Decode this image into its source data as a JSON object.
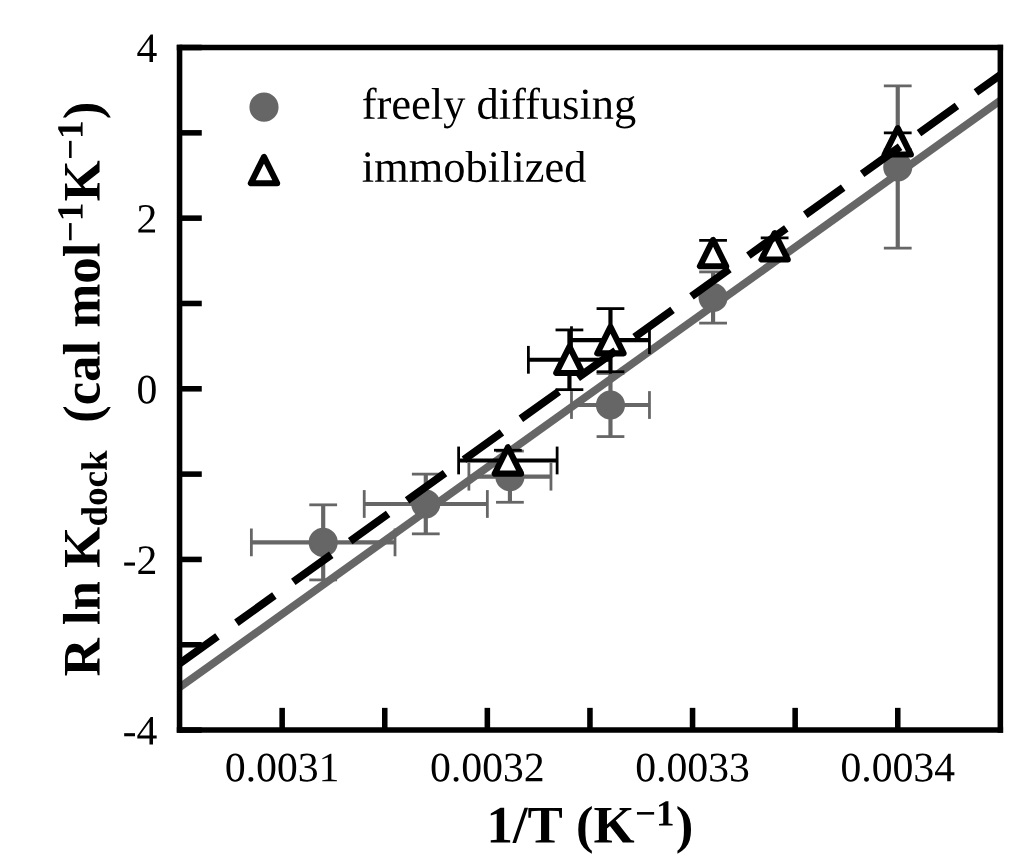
{
  "chart_data": {
    "type": "scatter",
    "xlabel": "1/T (K$^{−1}$)",
    "ylabel": "R ln K$_{dock}$  (cal mol$^{−1}$K$^{−1}$)",
    "xlim": [
      0.00305,
      0.00345
    ],
    "ylim": [
      -4,
      4
    ],
    "xticks": [
      0.0031,
      {
        "value": 0.00315,
        "label": null
      },
      0.0032,
      {
        "value": 0.00325,
        "label": null
      },
      0.0033,
      {
        "value": 0.00335,
        "label": null
      },
      0.0034
    ],
    "yticks": [
      -4,
      {
        "value": -3,
        "label": null
      },
      -2,
      {
        "value": -1,
        "label": null
      },
      0,
      {
        "value": 1,
        "label": null
      },
      2,
      {
        "value": 3,
        "label": null
      },
      4
    ],
    "grid": false,
    "legend": "top left",
    "series": [
      {
        "name": "freely diffusing",
        "marker": "circle",
        "color": "#666666",
        "x": [
          0.00312,
          0.00317,
          0.003211,
          0.00326,
          0.00331,
          0.0034
        ],
        "values": [
          -1.8,
          -1.35,
          -1.03,
          -0.19,
          1.07,
          2.6
        ],
        "errors": [
          0.44,
          0.35,
          0.3,
          0.37,
          0.3,
          0.95
        ],
        "xerrors": [
          3.5e-05,
          3e-05,
          2e-05,
          1.9e-05,
          null,
          null
        ]
      },
      {
        "name": "immobilized",
        "marker": "triangle",
        "color": "#000000",
        "x": [
          0.00321,
          0.00324,
          0.00326,
          0.00331,
          0.00334,
          0.0034
        ],
        "values": [
          -0.84,
          0.34,
          0.57,
          1.59,
          1.67,
          2.9
        ],
        "errors": [
          0.12,
          0.35,
          0.37,
          0.15,
          0.1,
          0.1
        ],
        "xerrors": [
          2.4e-05,
          2e-05,
          1.9e-05,
          null,
          null,
          null
        ]
      },
      {
        "type": "line",
        "line_style": "solid",
        "color": "#666666",
        "x": [
          0.00305,
          0.00345
        ],
        "values": [
          -3.5,
          3.38
        ]
      },
      {
        "type": "line",
        "line_style": "dashed",
        "color": "#000000",
        "x": [
          0.00305,
          0.00345
        ],
        "values": [
          -3.22,
          3.68
        ]
      }
    ]
  }
}
